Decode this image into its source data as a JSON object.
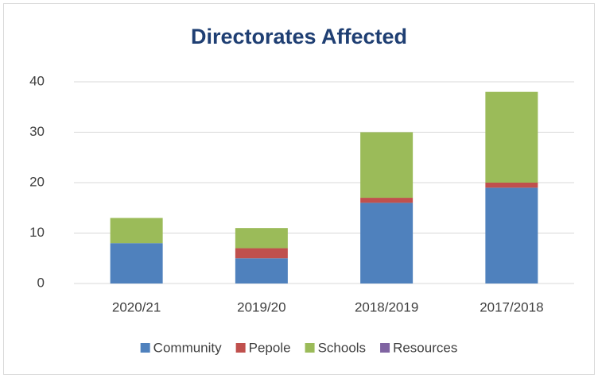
{
  "chart_data": {
    "type": "stacked_bar",
    "title": "Directorates Affected",
    "categories": [
      "2020/21",
      "2019/20",
      "2018/2019",
      "2017/2018"
    ],
    "series": [
      {
        "name": "Community",
        "color": "#4f81bd",
        "values": [
          8,
          5,
          16,
          19
        ]
      },
      {
        "name": "Pepole",
        "color": "#c0504d",
        "values": [
          0,
          2,
          1,
          1
        ]
      },
      {
        "name": "Schools",
        "color": "#9bbb59",
        "values": [
          5,
          4,
          13,
          18
        ]
      },
      {
        "name": "Resources",
        "color": "#8064a2",
        "values": [
          0,
          0,
          0,
          0
        ]
      }
    ],
    "ylim": [
      0,
      40
    ],
    "yticks": [
      0,
      10,
      20,
      30,
      40
    ],
    "grid": true,
    "legend": "bottom"
  }
}
